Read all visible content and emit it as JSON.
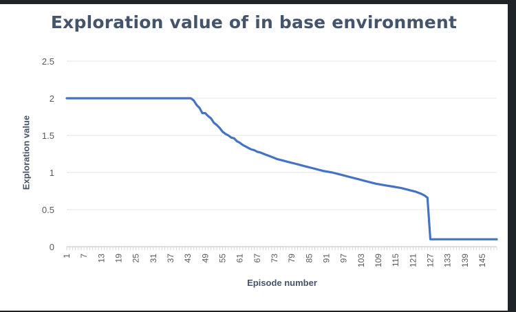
{
  "chart_data": {
    "type": "line",
    "title": "Exploration value of in base environment",
    "xlabel": "Episode number",
    "ylabel": "Exploration value",
    "ylim": [
      0,
      2.5
    ],
    "y_ticks": [
      "0",
      "0.5",
      "1",
      "1.5",
      "2",
      "2.5"
    ],
    "x_tick_labels": [
      "1",
      "7",
      "13",
      "19",
      "25",
      "31",
      "37",
      "43",
      "49",
      "55",
      "61",
      "67",
      "73",
      "79",
      "85",
      "91",
      "97",
      "103",
      "109",
      "115",
      "121",
      "127",
      "133",
      "139",
      "145"
    ],
    "x_range": [
      1,
      150
    ],
    "grid": "horizontal",
    "legend": "none",
    "series": [
      {
        "color": "#4472c4",
        "points": [
          [
            1,
            2.0
          ],
          [
            44,
            2.0
          ],
          [
            45,
            1.97
          ],
          [
            46,
            1.91
          ],
          [
            47,
            1.87
          ],
          [
            48,
            1.8
          ],
          [
            49,
            1.8
          ],
          [
            50,
            1.76
          ],
          [
            51,
            1.73
          ],
          [
            52,
            1.67
          ],
          [
            53,
            1.64
          ],
          [
            54,
            1.6
          ],
          [
            55,
            1.55
          ],
          [
            56,
            1.52
          ],
          [
            57,
            1.5
          ],
          [
            58,
            1.47
          ],
          [
            59,
            1.46
          ],
          [
            60,
            1.42
          ],
          [
            61,
            1.4
          ],
          [
            62,
            1.37
          ],
          [
            63,
            1.35
          ],
          [
            64,
            1.33
          ],
          [
            65,
            1.31
          ],
          [
            66,
            1.3
          ],
          [
            67,
            1.28
          ],
          [
            68,
            1.27
          ],
          [
            70,
            1.24
          ],
          [
            72,
            1.21
          ],
          [
            74,
            1.18
          ],
          [
            76,
            1.16
          ],
          [
            78,
            1.14
          ],
          [
            80,
            1.12
          ],
          [
            82,
            1.1
          ],
          [
            84,
            1.08
          ],
          [
            86,
            1.06
          ],
          [
            88,
            1.04
          ],
          [
            90,
            1.02
          ],
          [
            93,
            1.0
          ],
          [
            96,
            0.97
          ],
          [
            99,
            0.94
          ],
          [
            102,
            0.91
          ],
          [
            105,
            0.88
          ],
          [
            108,
            0.85
          ],
          [
            111,
            0.83
          ],
          [
            114,
            0.81
          ],
          [
            117,
            0.79
          ],
          [
            120,
            0.76
          ],
          [
            122,
            0.74
          ],
          [
            124,
            0.71
          ],
          [
            125,
            0.69
          ],
          [
            126,
            0.66
          ],
          [
            127,
            0.1
          ],
          [
            150,
            0.1
          ]
        ]
      }
    ]
  }
}
